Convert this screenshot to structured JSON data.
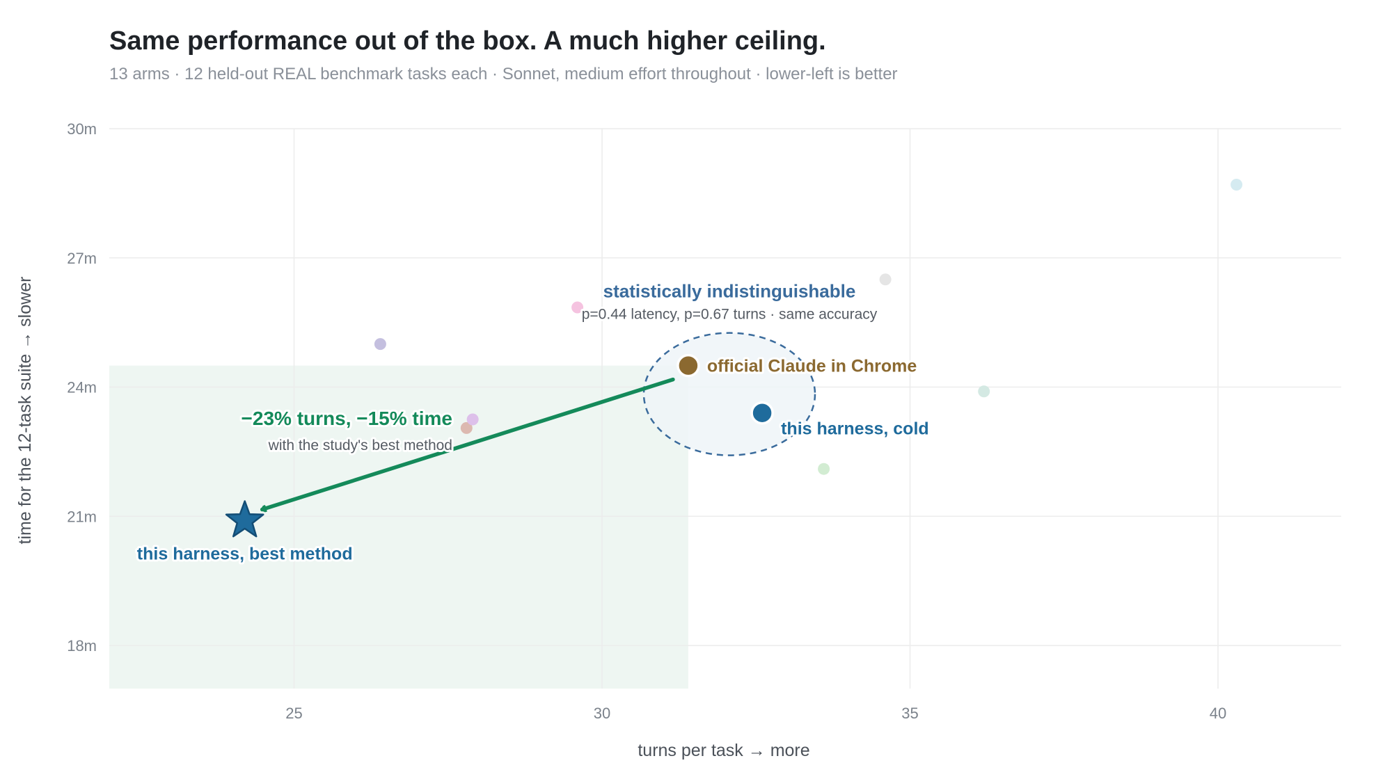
{
  "chart_data": {
    "type": "scatter",
    "title": "Same performance out of the box. A much higher ceiling.",
    "subtitle": "13 arms · 12 held-out REAL benchmark tasks each · Sonnet, medium effort throughout · lower-left is better",
    "xlabel": "turns per task → more",
    "ylabel": "time for the 12-task suite → slower",
    "xlim": [
      22,
      42
    ],
    "ylim": [
      17,
      30
    ],
    "x_ticks": [
      "25",
      "30",
      "35",
      "40"
    ],
    "y_ticks": [
      "18m",
      "21m",
      "24m",
      "27m",
      "30m"
    ],
    "grid": true,
    "highlight_region": {
      "x": [
        22,
        31.4
      ],
      "y": [
        17,
        24.5
      ],
      "color": "#eef6f2"
    },
    "background_points": [
      {
        "x": 26.4,
        "y": 25.0,
        "color": "#c4bfdf"
      },
      {
        "x": 27.8,
        "y": 23.05,
        "color": "#dcb9b0"
      },
      {
        "x": 27.9,
        "y": 23.25,
        "color": "#ddc0ea"
      },
      {
        "x": 29.6,
        "y": 25.85,
        "color": "#f5c3e0"
      },
      {
        "x": 33.6,
        "y": 22.1,
        "color": "#d2ecd2"
      },
      {
        "x": 34.6,
        "y": 26.5,
        "color": "#e5e5e5"
      },
      {
        "x": 36.2,
        "y": 23.9,
        "color": "#d4e9e3"
      },
      {
        "x": 40.3,
        "y": 28.7,
        "color": "#d5ebf1"
      }
    ],
    "key_points": [
      {
        "x": 31.4,
        "y": 24.5,
        "label": "official Claude in Chrome",
        "color": "#8b6930",
        "marker": "circle"
      },
      {
        "x": 32.6,
        "y": 23.4,
        "label": "this harness, cold",
        "color": "#1f6b9c",
        "marker": "circle"
      },
      {
        "x": 24.2,
        "y": 20.9,
        "label": "this harness, best method",
        "color": "#1f6b9c",
        "marker": "star"
      }
    ],
    "annotations": {
      "indistinguishable_title": "statistically indistinguishable",
      "indistinguishable_detail": "p=0.44 latency, p=0.67 turns · same accuracy",
      "improvement_title": "−23% turns, −15% time",
      "improvement_detail": "with the study's best method"
    },
    "colors": {
      "improvement": "#148a5a",
      "indistinguishable": "#3a6b9c",
      "ellipse_fill": "#eef4f8",
      "grid": "#ececec"
    }
  }
}
